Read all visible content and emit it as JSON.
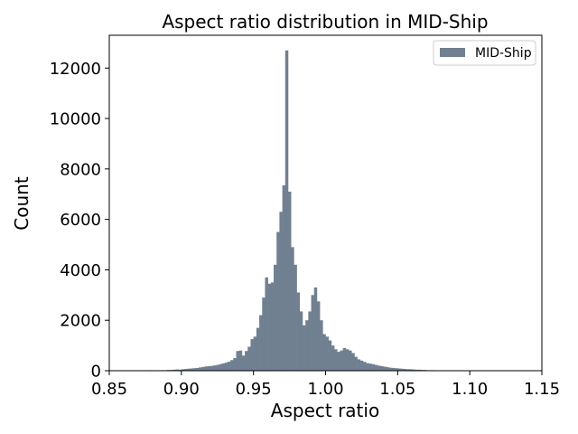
{
  "chart_data": {
    "type": "bar",
    "title": "Aspect ratio distribution in MID-Ship",
    "xlabel": "Aspect ratio",
    "ylabel": "Count",
    "xlim": [
      0.85,
      1.15
    ],
    "ylim": [
      0,
      13300
    ],
    "xticks": [
      "0.85",
      "0.90",
      "0.95",
      "1.00",
      "1.05",
      "1.10",
      "1.15"
    ],
    "yticks": [
      "0",
      "2000",
      "4000",
      "6000",
      "8000",
      "10000",
      "12000"
    ],
    "legend": {
      "position": "top-right"
    },
    "grid": false,
    "series": [
      {
        "name": "MID-Ship",
        "color": "#708090",
        "bin_width": 0.002,
        "bin_start": 0.87,
        "values": [
          10,
          10,
          0,
          20,
          20,
          0,
          10,
          10,
          20,
          20,
          30,
          30,
          40,
          50,
          40,
          60,
          70,
          80,
          90,
          100,
          110,
          130,
          150,
          170,
          180,
          190,
          210,
          230,
          260,
          290,
          320,
          360,
          420,
          500,
          780,
          800,
          600,
          780,
          950,
          1250,
          1350,
          1700,
          2200,
          2900,
          3700,
          3450,
          3500,
          4200,
          5500,
          6300,
          7350,
          12700,
          7100,
          4900,
          4200,
          3100,
          2350,
          1800,
          2000,
          2350,
          3000,
          3300,
          2750,
          2000,
          1450,
          1350,
          1200,
          1000,
          850,
          750,
          800,
          900,
          850,
          800,
          700,
          550,
          450,
          400,
          350,
          300,
          280,
          260,
          230,
          200,
          180,
          160,
          140,
          120,
          110,
          100,
          90,
          80,
          70,
          60,
          60,
          50,
          40,
          40,
          30,
          30,
          20,
          20,
          20,
          10,
          10,
          10,
          10,
          0,
          0,
          0
        ]
      }
    ]
  }
}
